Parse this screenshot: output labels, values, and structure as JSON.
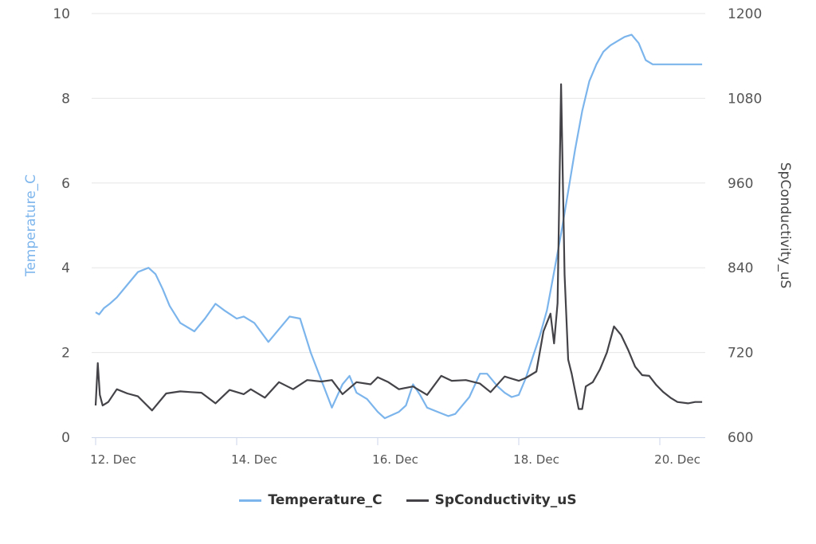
{
  "chart_data": {
    "type": "line",
    "title": "",
    "xlabel": "",
    "x_ticks": [
      "12. Dec",
      "14. Dec",
      "16. Dec",
      "18. Dec",
      "20. Dec"
    ],
    "x_range_days": [
      0,
      8.65
    ],
    "y_left": {
      "label": "Temperature_C",
      "ticks": [
        0,
        2,
        4,
        6,
        8,
        10
      ],
      "range": [
        0,
        10
      ],
      "color": "#7cb5ec"
    },
    "y_right": {
      "label": "SpConductivity_uS",
      "ticks": [
        600,
        720,
        840,
        960,
        1080,
        1200
      ],
      "range": [
        600,
        1200
      ],
      "color": "#434348"
    },
    "grid": true,
    "legend_position": "bottom-center",
    "series": [
      {
        "name": "Temperature_C",
        "axis": "left",
        "color": "#7cb5ec",
        "x_days": [
          0.0,
          0.05,
          0.12,
          0.2,
          0.3,
          0.45,
          0.6,
          0.75,
          0.85,
          0.95,
          1.05,
          1.2,
          1.4,
          1.55,
          1.7,
          1.82,
          2.0,
          2.1,
          2.25,
          2.45,
          2.6,
          2.75,
          2.9,
          3.05,
          3.2,
          3.35,
          3.5,
          3.6,
          3.7,
          3.85,
          4.0,
          4.1,
          4.3,
          4.4,
          4.5,
          4.6,
          4.7,
          4.85,
          5.0,
          5.1,
          5.3,
          5.45,
          5.55,
          5.7,
          5.8,
          5.9,
          6.0,
          6.1,
          6.2,
          6.3,
          6.4,
          6.5,
          6.6,
          6.7,
          6.8,
          6.9,
          7.0,
          7.1,
          7.2,
          7.3,
          7.4,
          7.5,
          7.6,
          7.7,
          7.8,
          7.9,
          8.0,
          8.1,
          8.2,
          8.25,
          8.35,
          8.45,
          8.55,
          8.6
        ],
        "values": [
          2.95,
          2.9,
          3.05,
          3.15,
          3.3,
          3.6,
          3.9,
          4.0,
          3.85,
          3.5,
          3.1,
          2.7,
          2.5,
          2.8,
          3.15,
          3.0,
          2.8,
          2.85,
          2.7,
          2.25,
          2.55,
          2.85,
          2.8,
          2.0,
          1.35,
          0.7,
          1.25,
          1.45,
          1.05,
          0.9,
          0.6,
          0.45,
          0.6,
          0.75,
          1.25,
          1.0,
          0.7,
          0.6,
          0.5,
          0.55,
          0.95,
          1.5,
          1.5,
          1.2,
          1.05,
          0.95,
          1.0,
          1.4,
          1.9,
          2.4,
          3.0,
          3.9,
          4.8,
          5.8,
          6.8,
          7.7,
          8.4,
          8.8,
          9.1,
          9.25,
          9.35,
          9.45,
          9.5,
          9.3,
          8.9,
          8.8,
          8.8,
          8.8,
          8.8,
          8.8,
          8.8,
          8.8,
          8.8,
          8.8
        ]
      },
      {
        "name": "SpConductivity_uS",
        "axis": "right",
        "color": "#434348",
        "x_days": [
          0.0,
          0.03,
          0.06,
          0.1,
          0.18,
          0.3,
          0.45,
          0.6,
          0.8,
          1.0,
          1.2,
          1.35,
          1.5,
          1.7,
          1.9,
          2.1,
          2.2,
          2.4,
          2.6,
          2.8,
          3.0,
          3.2,
          3.35,
          3.5,
          3.7,
          3.9,
          4.0,
          4.15,
          4.3,
          4.5,
          4.7,
          4.9,
          5.05,
          5.25,
          5.45,
          5.6,
          5.8,
          6.0,
          6.1,
          6.25,
          6.35,
          6.45,
          6.5,
          6.55,
          6.6,
          6.65,
          6.7,
          6.75,
          6.85,
          6.9,
          6.95,
          7.05,
          7.15,
          7.25,
          7.35,
          7.45,
          7.55,
          7.65,
          7.75,
          7.85,
          7.95,
          8.05,
          8.15,
          8.25,
          8.4,
          8.5,
          8.6
        ],
        "values": [
          645,
          705,
          660,
          645,
          650,
          668,
          662,
          658,
          638,
          662,
          665,
          664,
          663,
          648,
          667,
          661,
          668,
          656,
          678,
          668,
          681,
          679,
          681,
          661,
          678,
          675,
          685,
          678,
          668,
          672,
          660,
          687,
          680,
          681,
          676,
          664,
          686,
          680,
          684,
          693,
          750,
          775,
          733,
          790,
          1100,
          830,
          710,
          690,
          640,
          640,
          672,
          678,
          696,
          720,
          757,
          745,
          724,
          700,
          688,
          687,
          674,
          664,
          656,
          650,
          648,
          650,
          650
        ]
      }
    ]
  },
  "axes": {
    "left_title": "Temperature_C",
    "right_title": "SpConductivity_uS",
    "left_ticks": [
      "0",
      "2",
      "4",
      "6",
      "8",
      "10"
    ],
    "right_ticks": [
      "600",
      "720",
      "840",
      "960",
      "1080",
      "1200"
    ],
    "x_ticks": [
      "12. Dec",
      "14. Dec",
      "16. Dec",
      "18. Dec",
      "20. Dec"
    ]
  },
  "legend": {
    "items": [
      {
        "label": "Temperature_C",
        "color": "#7cb5ec"
      },
      {
        "label": "SpConductivity_uS",
        "color": "#434348"
      }
    ]
  }
}
